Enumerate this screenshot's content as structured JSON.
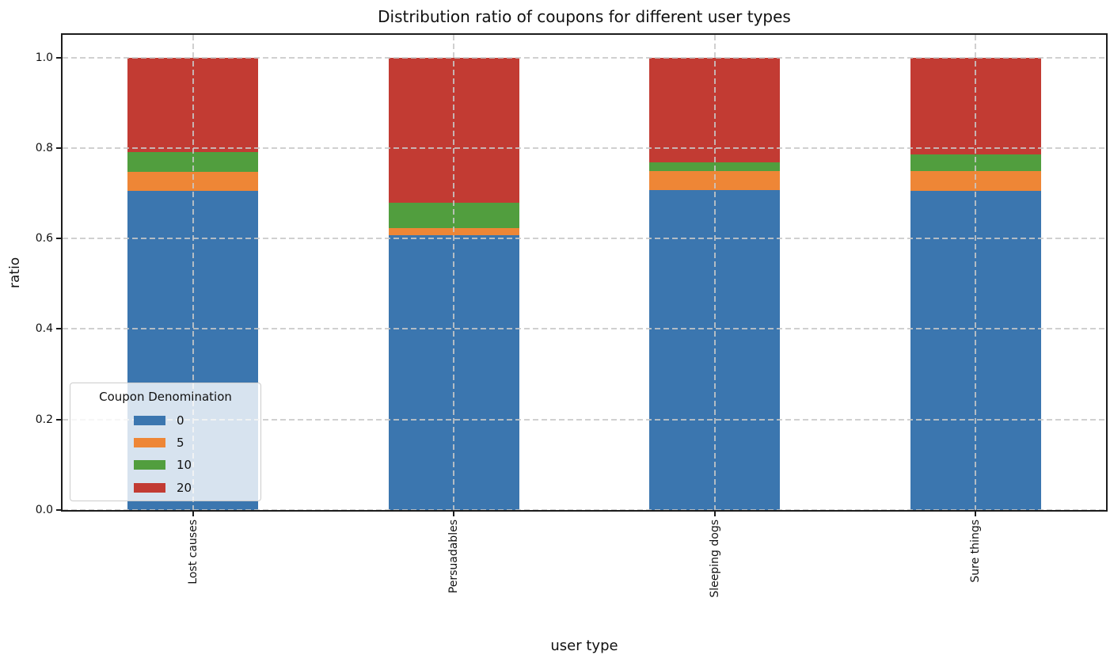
{
  "chart_data": {
    "type": "bar",
    "stacked": true,
    "title": "Distribution ratio of coupons for different user types",
    "xlabel": "user type",
    "ylabel": "ratio",
    "categories": [
      "Lost causes",
      "Persuadables",
      "Sleeping dogs",
      "Sure things"
    ],
    "series": [
      {
        "name": "0",
        "color": "#3b76af",
        "values": [
          0.705,
          0.608,
          0.707,
          0.705
        ]
      },
      {
        "name": "5",
        "color": "#ee8636",
        "values": [
          0.042,
          0.015,
          0.042,
          0.044
        ]
      },
      {
        "name": "10",
        "color": "#519e3e",
        "values": [
          0.044,
          0.056,
          0.019,
          0.037
        ]
      },
      {
        "name": "20",
        "color": "#c23b33",
        "values": [
          0.209,
          0.321,
          0.232,
          0.214
        ]
      }
    ],
    "ylim": [
      0,
      1.05
    ],
    "ytick_values": [
      0.0,
      0.2,
      0.4,
      0.6,
      0.8,
      1.0
    ],
    "ytick_labels": [
      "0.0",
      "0.2",
      "0.4",
      "0.6",
      "0.8",
      "1.0"
    ],
    "bar_width_fraction": 0.5,
    "grid": true,
    "grid_style": "dashed",
    "legend": {
      "title": "Coupon Denomination",
      "position": "lower left",
      "entries": [
        "0",
        "5",
        "10",
        "20"
      ]
    }
  }
}
